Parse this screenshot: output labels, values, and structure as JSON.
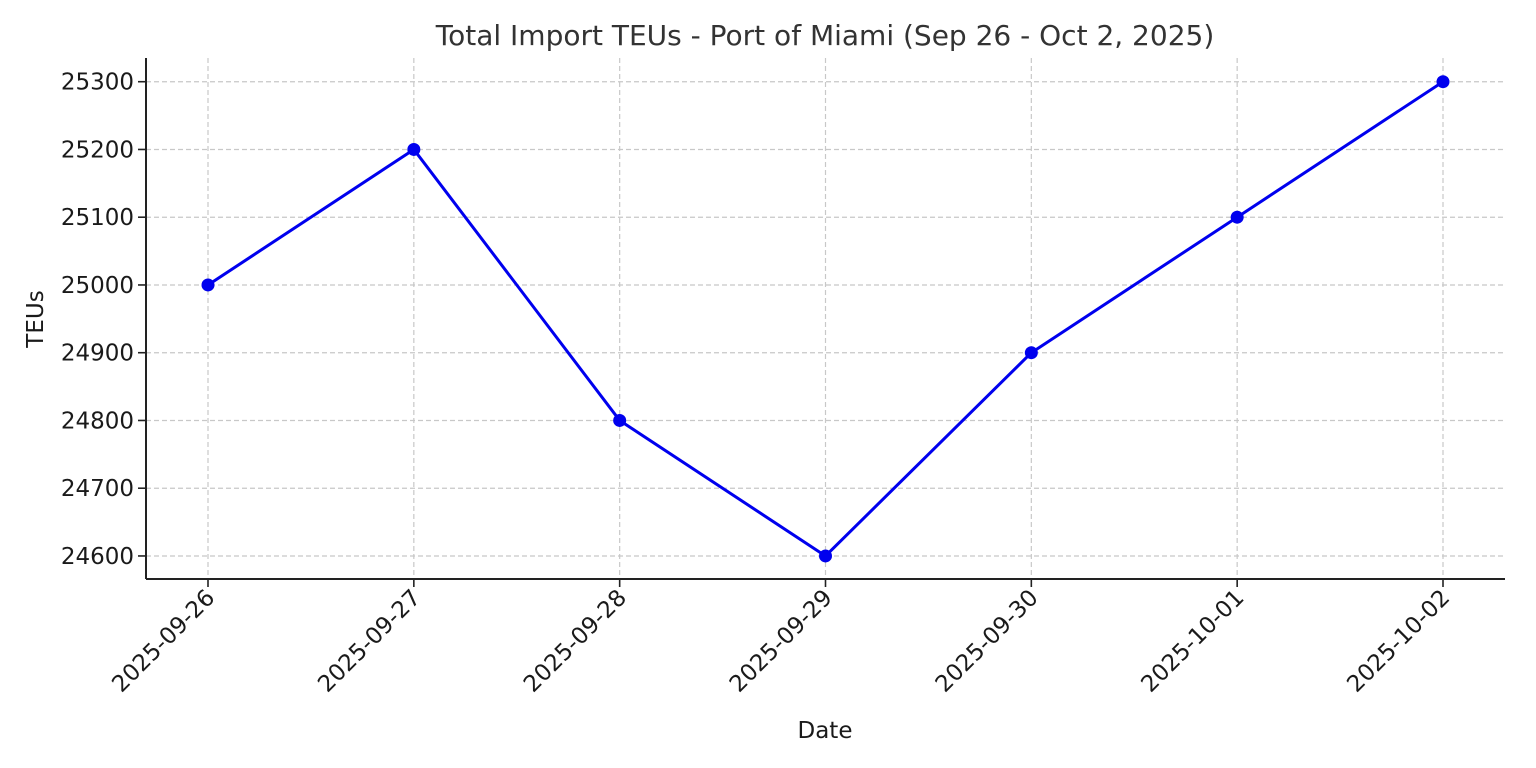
{
  "chart_data": {
    "type": "line",
    "title": "Total Import TEUs - Port of Miami (Sep 26 - Oct 2, 2025)",
    "xlabel": "Date",
    "ylabel": "TEUs",
    "x": [
      "2025-09-26",
      "2025-09-27",
      "2025-09-28",
      "2025-09-29",
      "2025-09-30",
      "2025-10-01",
      "2025-10-02"
    ],
    "series": [
      {
        "values": [
          25000,
          25200,
          24800,
          24600,
          24900,
          25100,
          25300
        ],
        "color": "#0000ee"
      }
    ],
    "yticks": [
      24600,
      24700,
      24800,
      24900,
      25000,
      25100,
      25200,
      25300
    ],
    "ylim": [
      24566,
      25335
    ],
    "grid": true,
    "marker": "circle"
  }
}
